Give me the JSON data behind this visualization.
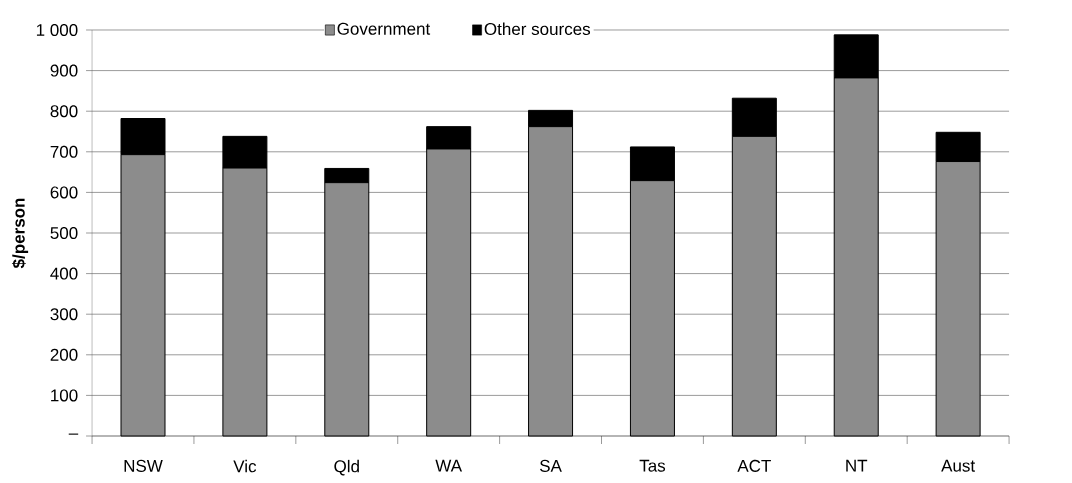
{
  "chart_data": {
    "type": "bar",
    "stacked": true,
    "ylabel": "$/person",
    "categories": [
      "NSW",
      "Vic",
      "Qld",
      "WA",
      "SA",
      "Tas",
      "ACT",
      "NT",
      "Aust"
    ],
    "series": [
      {
        "name": "Government",
        "color": "#8c8c8c",
        "values": [
          693,
          660,
          624,
          707,
          762,
          629,
          738,
          882,
          676
        ]
      },
      {
        "name": "Other sources",
        "color": "#000000",
        "values": [
          89,
          78,
          35,
          55,
          40,
          83,
          94,
          106,
          72
        ]
      }
    ],
    "ylim": [
      0,
      1000
    ],
    "yticks": [
      {
        "value": 0,
        "label": "–"
      },
      100,
      200,
      300,
      400,
      500,
      600,
      700,
      800,
      900,
      {
        "value": 1000,
        "label": "1 000"
      }
    ],
    "grid": "y",
    "legend": "top"
  }
}
